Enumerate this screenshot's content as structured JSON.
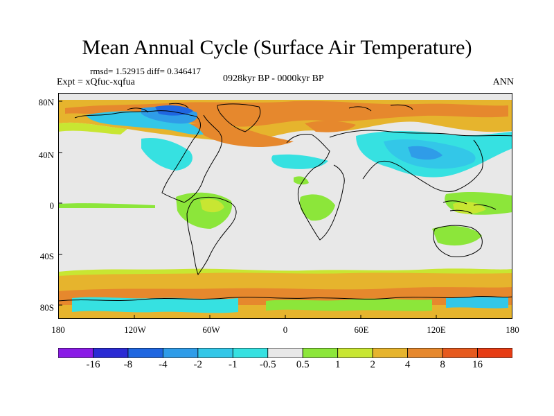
{
  "title": "Mean Annual Cycle (Surface Air Temperature)",
  "stats": "rmsd= 1.52915 diff= 0.346417",
  "experiment": "Expt = xQfuc-xqfua",
  "period": "0928kyr BP - 0000kyr BP",
  "season": "ANN",
  "lat_ticks": [
    "80N",
    "40N",
    "0",
    "40S",
    "80S"
  ],
  "lon_ticks": [
    "180",
    "120W",
    "60W",
    "0",
    "60E",
    "120E",
    "180"
  ],
  "colorbar": {
    "labels": [
      "-16",
      "-8",
      "-4",
      "-2",
      "-1",
      "-0.5",
      "0.5",
      "1",
      "2",
      "4",
      "8",
      "16"
    ],
    "colors": [
      "#8a1be6",
      "#2b2bd4",
      "#1f66e0",
      "#2f9ce8",
      "#33c7e8",
      "#36e1e1",
      "#e8e8e8",
      "#8ce63a",
      "#c8e632",
      "#e6b42d",
      "#e6882d",
      "#e65a1e",
      "#e63c14"
    ]
  },
  "map_colors": {
    "ocean": "#e8e8e8",
    "warm_low": "#8ce63a",
    "warm_mid": "#c8e632",
    "warm_high": "#e6b42d",
    "warm_very": "#e6882d",
    "cool_low": "#36e1e1",
    "cool_mid": "#33c7e8",
    "cool_high": "#2f9ce8",
    "cool_very": "#1f66e0"
  }
}
